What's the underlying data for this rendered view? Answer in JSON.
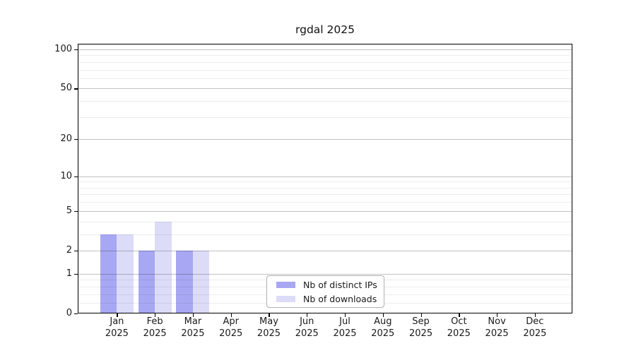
{
  "figure": {
    "background": "#ffffff"
  },
  "chart_data": {
    "type": "bar",
    "title": "rgdal 2025",
    "categories": [
      "Jan 2025",
      "Feb 2025",
      "Mar 2025",
      "Apr 2025",
      "May 2025",
      "Jun 2025",
      "Jul 2025",
      "Aug 2025",
      "Sep 2025",
      "Oct 2025",
      "Nov 2025",
      "Dec 2025"
    ],
    "category_lines": [
      {
        "month": "Jan",
        "year": "2025"
      },
      {
        "month": "Feb",
        "year": "2025"
      },
      {
        "month": "Mar",
        "year": "2025"
      },
      {
        "month": "Apr",
        "year": "2025"
      },
      {
        "month": "May",
        "year": "2025"
      },
      {
        "month": "Jun",
        "year": "2025"
      },
      {
        "month": "Jul",
        "year": "2025"
      },
      {
        "month": "Aug",
        "year": "2025"
      },
      {
        "month": "Sep",
        "year": "2025"
      },
      {
        "month": "Oct",
        "year": "2025"
      },
      {
        "month": "Nov",
        "year": "2025"
      },
      {
        "month": "Dec",
        "year": "2025"
      }
    ],
    "series": [
      {
        "name": "Nb of distinct IPs",
        "color": "#a7a7f3",
        "values": [
          3,
          2,
          2,
          0,
          0,
          0,
          0,
          0,
          0,
          0,
          0,
          0
        ]
      },
      {
        "name": "Nb of downloads",
        "color": "#dcdcf8",
        "values": [
          3,
          4,
          2,
          0,
          0,
          0,
          0,
          0,
          0,
          0,
          0,
          0
        ]
      }
    ],
    "yscale": "log1p",
    "ylim": [
      0,
      110
    ],
    "yticks": {
      "values": [
        0,
        1,
        2,
        5,
        10,
        20,
        50,
        100
      ],
      "labels": [
        "0",
        "1",
        "2",
        "5",
        "10",
        "20",
        "50",
        "100"
      ]
    },
    "yticks_minor": [
      0.2,
      0.4,
      0.6,
      0.8,
      3,
      4,
      6,
      7,
      8,
      9,
      30,
      40,
      60,
      70,
      80,
      90
    ],
    "grid": {
      "orientation": "horizontal",
      "major_color": "rgba(0,0,0,0.24)",
      "minor_color": "rgba(0,0,0,0.07)"
    },
    "legend": {
      "position": "lower center",
      "labels": [
        "Nb of distinct IPs",
        "Nb of downloads"
      ]
    }
  }
}
